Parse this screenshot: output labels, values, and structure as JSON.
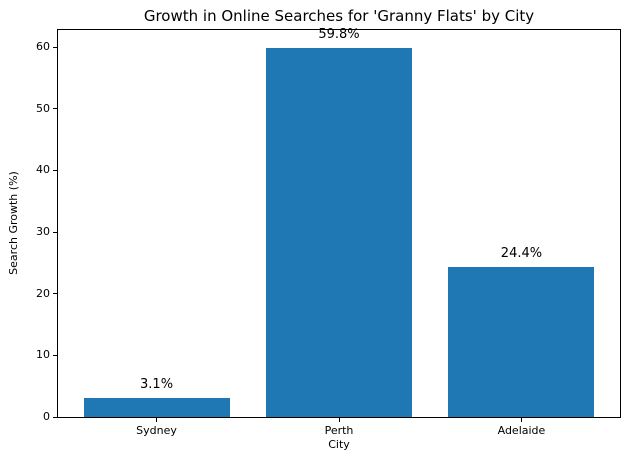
{
  "chart_data": {
    "type": "bar",
    "title": "Growth in Online Searches for 'Granny Flats' by City",
    "xlabel": "City",
    "ylabel": "Search Growth (%)",
    "categories": [
      "Sydney",
      "Perth",
      "Adelaide"
    ],
    "values": [
      3.1,
      59.8,
      24.4
    ],
    "bar_labels": [
      "3.1%",
      "59.8%",
      "24.4%"
    ],
    "yticks": [
      0,
      10,
      20,
      30,
      40,
      50,
      60
    ],
    "ylim": [
      0,
      62.79
    ],
    "xlim": [
      -0.54,
      2.54
    ],
    "bar_width_units": 0.8,
    "grid": false,
    "legend": "none",
    "colors": {
      "bar": "#1f77b4",
      "spine": "#000000",
      "text": "#000000",
      "background": "#ffffff"
    }
  }
}
